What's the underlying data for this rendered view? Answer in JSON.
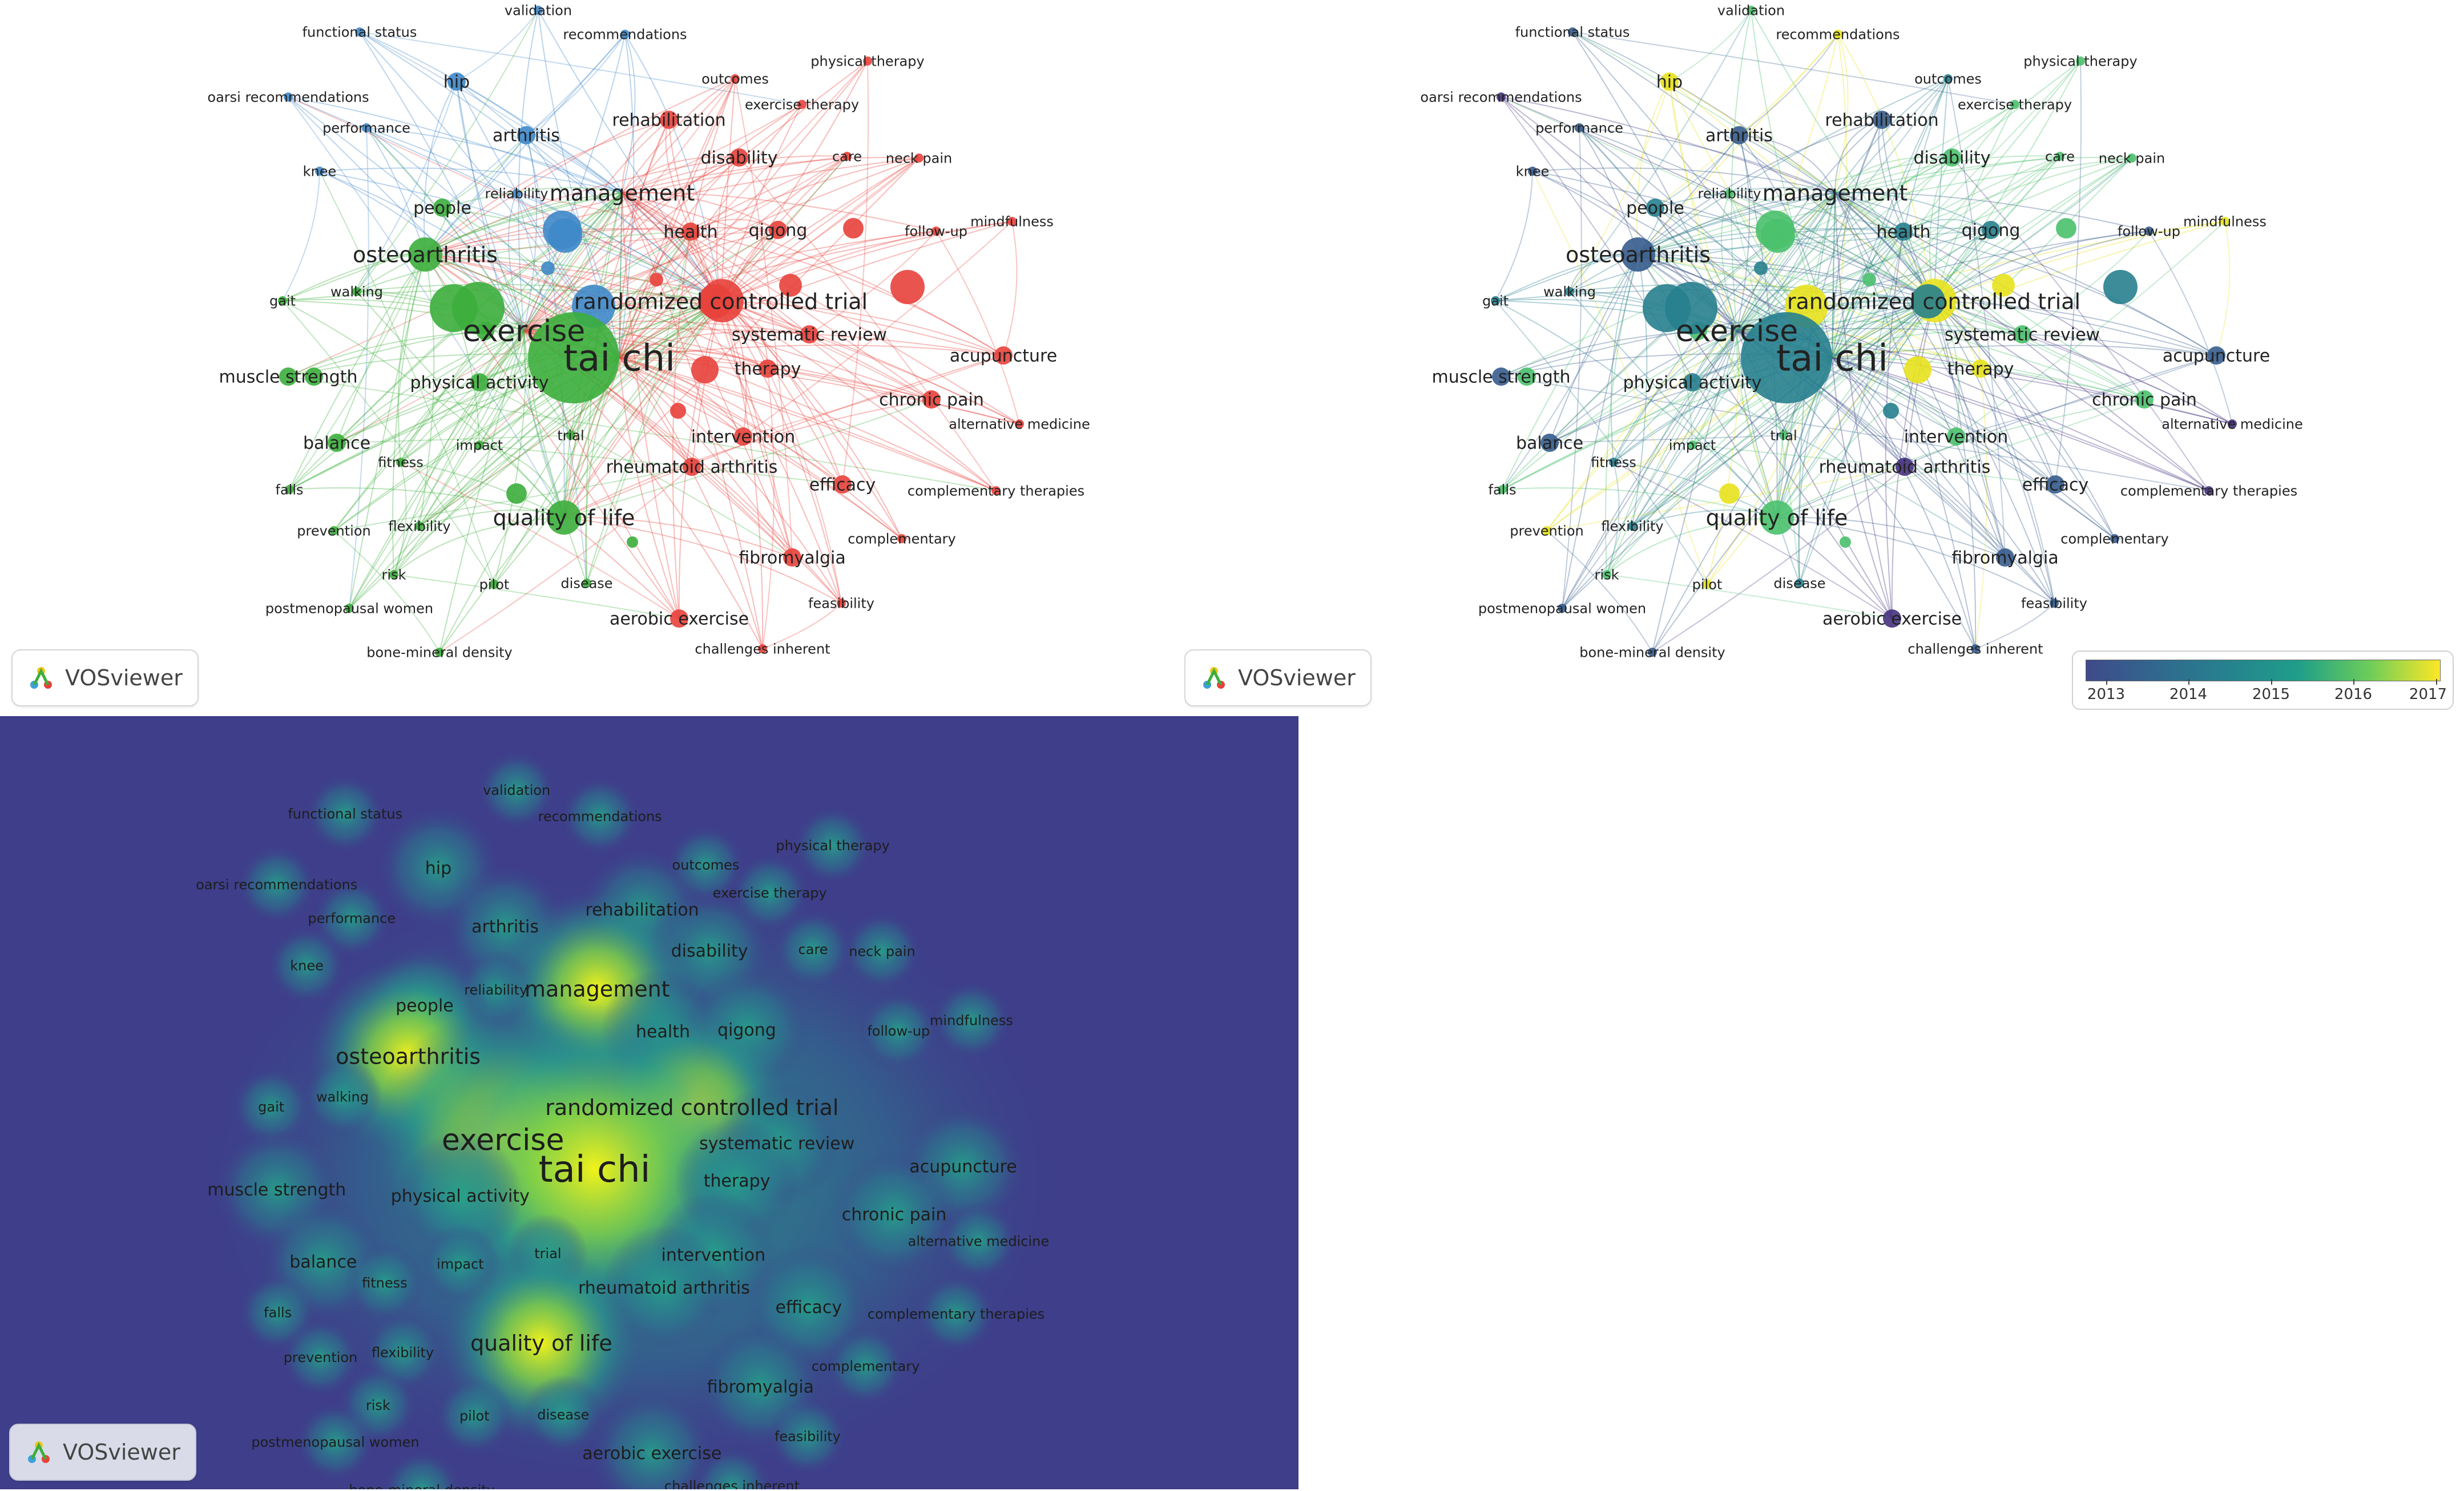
{
  "panels": {
    "network": {
      "badge_label": "VOSviewer"
    },
    "overlay": {
      "badge_label": "VOSviewer",
      "legend_labels": [
        "2013",
        "2014",
        "2015",
        "2016",
        "2017"
      ]
    },
    "density": {
      "badge_label": "VOSviewer"
    }
  },
  "colors": {
    "cluster_red": "#e8413b",
    "cluster_green": "#3cae3c",
    "cluster_blue": "#3f88c9",
    "density_background": "#3e3e8a",
    "density_hot": "#f2f21a"
  },
  "keywords": [
    {
      "label": "validation",
      "cluster": "blue",
      "weight": 1,
      "year": 2016
    },
    {
      "label": "functional status",
      "cluster": "blue",
      "weight": 1,
      "year": 2014
    },
    {
      "label": "recommendations",
      "cluster": "blue",
      "weight": 1,
      "year": 2017
    },
    {
      "label": "hip",
      "cluster": "blue",
      "weight": 2,
      "year": 2017
    },
    {
      "label": "outcomes",
      "cluster": "red",
      "weight": 1,
      "year": 2015
    },
    {
      "label": "physical therapy",
      "cluster": "red",
      "weight": 1,
      "year": 2016
    },
    {
      "label": "oarsi recommendations",
      "cluster": "blue",
      "weight": 1,
      "year": 2013
    },
    {
      "label": "performance",
      "cluster": "blue",
      "weight": 1,
      "year": 2014
    },
    {
      "label": "arthritis",
      "cluster": "blue",
      "weight": 2,
      "year": 2014
    },
    {
      "label": "rehabilitation",
      "cluster": "red",
      "weight": 2,
      "year": 2014
    },
    {
      "label": "exercise therapy",
      "cluster": "red",
      "weight": 1,
      "year": 2016
    },
    {
      "label": "knee",
      "cluster": "blue",
      "weight": 1,
      "year": 2014
    },
    {
      "label": "disability",
      "cluster": "red",
      "weight": 2,
      "year": 2016
    },
    {
      "label": "care",
      "cluster": "red",
      "weight": 1,
      "year": 2016
    },
    {
      "label": "neck pain",
      "cluster": "red",
      "weight": 1,
      "year": 2016
    },
    {
      "label": "reliability",
      "cluster": "blue",
      "weight": 1,
      "year": 2016
    },
    {
      "label": "management",
      "cluster": "blue",
      "weight": 3,
      "year": 2016
    },
    {
      "label": "people",
      "cluster": "green",
      "weight": 2,
      "year": 2015
    },
    {
      "label": "health",
      "cluster": "red",
      "weight": 2,
      "year": 2015
    },
    {
      "label": "qigong",
      "cluster": "red",
      "weight": 2,
      "year": 2015
    },
    {
      "label": "mindfulness",
      "cluster": "red",
      "weight": 1,
      "year": 2017
    },
    {
      "label": "follow-up",
      "cluster": "red",
      "weight": 1,
      "year": 2014
    },
    {
      "label": "osteoarthritis",
      "cluster": "green",
      "weight": 3,
      "year": 2014
    },
    {
      "label": "gait",
      "cluster": "green",
      "weight": 1,
      "year": 2015
    },
    {
      "label": "walking",
      "cluster": "green",
      "weight": 1,
      "year": 2015
    },
    {
      "label": "exercise",
      "cluster": "green",
      "weight": 4,
      "year": 2015
    },
    {
      "label": "randomized controlled trial",
      "cluster": "red",
      "weight": 3,
      "year": 2015
    },
    {
      "label": "systematic review",
      "cluster": "red",
      "weight": 2,
      "year": 2016
    },
    {
      "label": "tai chi",
      "cluster": "green",
      "weight": 5,
      "year": 2015
    },
    {
      "label": "acupuncture",
      "cluster": "red",
      "weight": 2,
      "year": 2014
    },
    {
      "label": "muscle strength",
      "cluster": "green",
      "weight": 2,
      "year": 2014
    },
    {
      "label": "physical activity",
      "cluster": "green",
      "weight": 2,
      "year": 2015
    },
    {
      "label": "therapy",
      "cluster": "red",
      "weight": 2,
      "year": 2017
    },
    {
      "label": "chronic pain",
      "cluster": "red",
      "weight": 2,
      "year": 2016
    },
    {
      "label": "trial",
      "cluster": "green",
      "weight": 1,
      "year": 2016
    },
    {
      "label": "intervention",
      "cluster": "red",
      "weight": 2,
      "year": 2016
    },
    {
      "label": "alternative medicine",
      "cluster": "red",
      "weight": 1,
      "year": 2013
    },
    {
      "label": "balance",
      "cluster": "green",
      "weight": 2,
      "year": 2014
    },
    {
      "label": "impact",
      "cluster": "green",
      "weight": 1,
      "year": 2016
    },
    {
      "label": "fitness",
      "cluster": "green",
      "weight": 1,
      "year": 2015
    },
    {
      "label": "rheumatoid arthritis",
      "cluster": "red",
      "weight": 2,
      "year": 2013
    },
    {
      "label": "efficacy",
      "cluster": "red",
      "weight": 2,
      "year": 2014
    },
    {
      "label": "complementary therapies",
      "cluster": "red",
      "weight": 1,
      "year": 2013
    },
    {
      "label": "falls",
      "cluster": "green",
      "weight": 1,
      "year": 2016
    },
    {
      "label": "flexibility",
      "cluster": "green",
      "weight": 1,
      "year": 2015
    },
    {
      "label": "quality of life",
      "cluster": "green",
      "weight": 3,
      "year": 2016
    },
    {
      "label": "prevention",
      "cluster": "green",
      "weight": 1,
      "year": 2017
    },
    {
      "label": "complementary",
      "cluster": "red",
      "weight": 1,
      "year": 2014
    },
    {
      "label": "risk",
      "cluster": "green",
      "weight": 1,
      "year": 2016
    },
    {
      "label": "fibromyalgia",
      "cluster": "red",
      "weight": 2,
      "year": 2014
    },
    {
      "label": "pilot",
      "cluster": "green",
      "weight": 1,
      "year": 2017
    },
    {
      "label": "disease",
      "cluster": "green",
      "weight": 1,
      "year": 2015
    },
    {
      "label": "postmenopausal women",
      "cluster": "green",
      "weight": 1,
      "year": 2014
    },
    {
      "label": "feasibility",
      "cluster": "red",
      "weight": 1,
      "year": 2014
    },
    {
      "label": "aerobic exercise",
      "cluster": "red",
      "weight": 2,
      "year": 2013
    },
    {
      "label": "bone-mineral density",
      "cluster": "green",
      "weight": 1,
      "year": 2014
    },
    {
      "label": "challenges inherent",
      "cluster": "red",
      "weight": 1,
      "year": 2014
    }
  ]
}
